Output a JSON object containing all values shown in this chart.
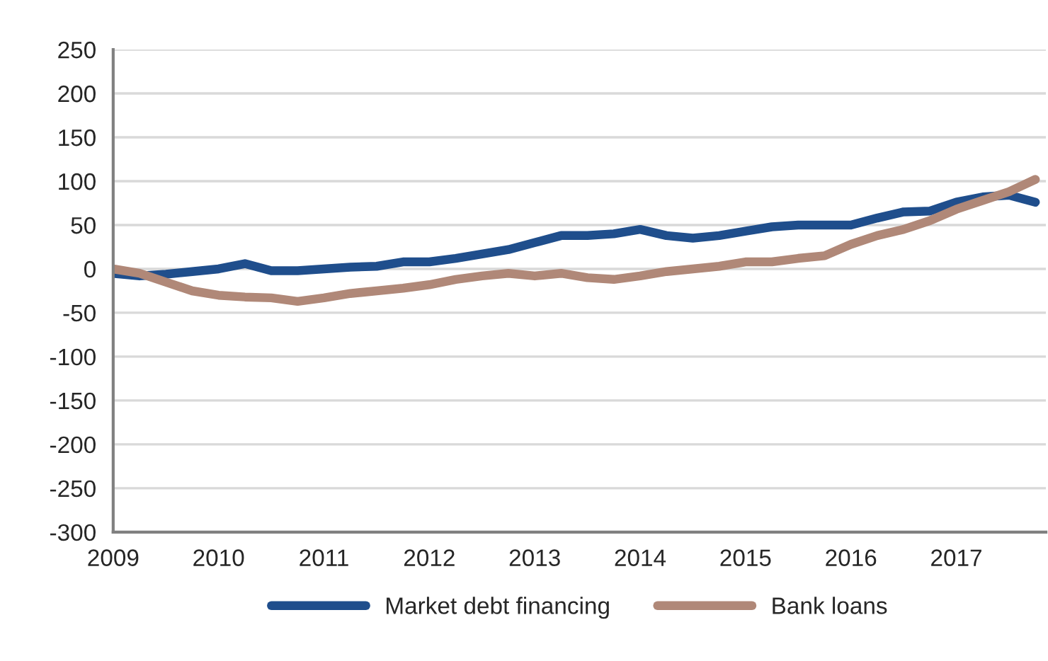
{
  "chart_data": {
    "type": "line",
    "x": [
      2009,
      2009.25,
      2009.5,
      2009.75,
      2010,
      2010.25,
      2010.5,
      2010.75,
      2011,
      2011.25,
      2011.5,
      2011.75,
      2012,
      2012.25,
      2012.5,
      2012.75,
      2013,
      2013.25,
      2013.5,
      2013.75,
      2014,
      2014.25,
      2014.5,
      2014.75,
      2015,
      2015.25,
      2015.5,
      2015.75,
      2016,
      2016.25,
      2016.5,
      2016.75,
      2017,
      2017.25,
      2017.5,
      2017.75
    ],
    "series": [
      {
        "name": "Market debt financing",
        "color": "#1f4e8c",
        "values": [
          -5,
          -8,
          -6,
          -3,
          0,
          6,
          -2,
          -2,
          0,
          2,
          3,
          8,
          8,
          12,
          17,
          22,
          30,
          38,
          38,
          40,
          45,
          38,
          35,
          38,
          43,
          48,
          50,
          50,
          50,
          58,
          65,
          66,
          76,
          82,
          84,
          76
        ]
      },
      {
        "name": "Bank loans",
        "color": "#b08878",
        "values": [
          0,
          -5,
          -15,
          -25,
          -30,
          -32,
          -33,
          -37,
          -33,
          -28,
          -25,
          -22,
          -18,
          -12,
          -8,
          -5,
          -8,
          -5,
          -10,
          -12,
          -8,
          -3,
          0,
          3,
          8,
          8,
          12,
          15,
          28,
          38,
          45,
          55,
          68,
          78,
          88,
          102
        ]
      }
    ],
    "xlim": [
      2009,
      2017.85
    ],
    "xticks": [
      2009,
      2010,
      2011,
      2012,
      2013,
      2014,
      2015,
      2016,
      2017
    ],
    "ylim": [
      -300,
      250
    ],
    "yticks": [
      -300,
      -250,
      -200,
      -150,
      -100,
      -50,
      0,
      50,
      100,
      150,
      200,
      250
    ],
    "grid": "y",
    "legend": "bottom",
    "line_style": "solid",
    "marker": "none"
  }
}
